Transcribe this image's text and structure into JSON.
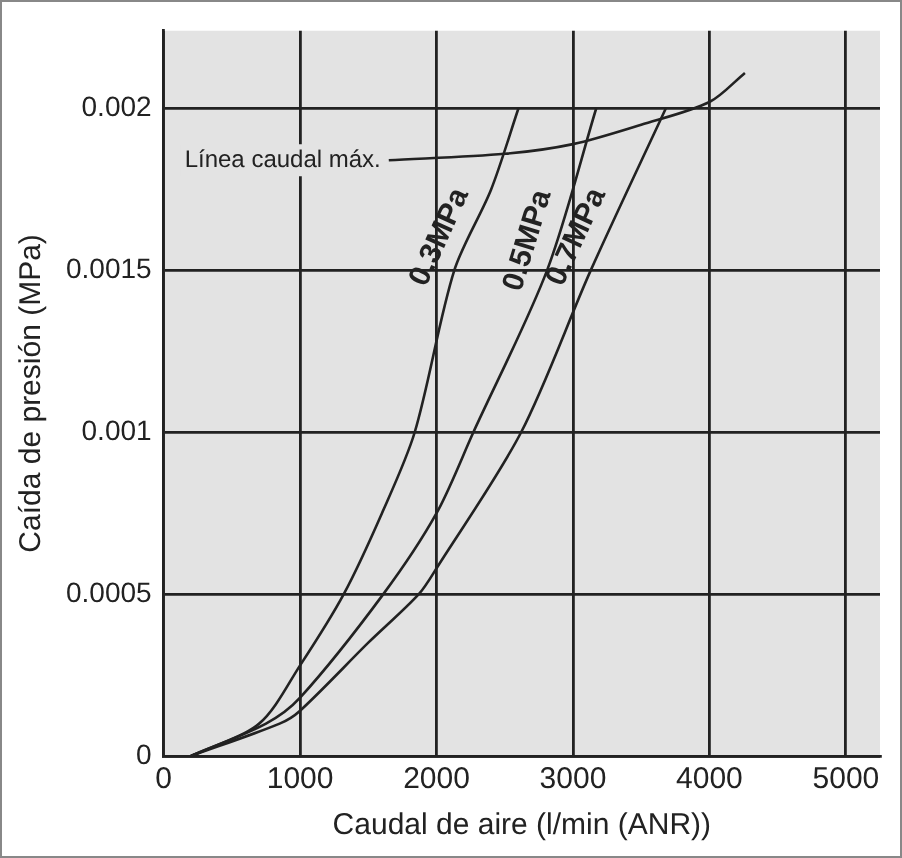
{
  "chart_data": {
    "type": "line",
    "xlabel": "Caudal de aire (l/min (ANR))",
    "ylabel": "Caída de presión (MPa)",
    "xlim": [
      0,
      5250
    ],
    "xticks": [
      0,
      1000,
      2000,
      3000,
      4000,
      5000
    ],
    "ylim": [
      0,
      0.00224
    ],
    "yticks": [
      0,
      0.0005,
      0.001,
      0.0015,
      0.002
    ],
    "grid": true,
    "legend": false,
    "marker": "none",
    "line_style": "solid",
    "series": [
      {
        "name": "0.3MPa",
        "color": "#222222",
        "x": [
          200,
          700,
          1000,
          1320,
          1600,
          1840,
          2130,
          2400,
          2600
        ],
        "values": [
          0,
          0.0001,
          0.00028,
          0.0005,
          0.00075,
          0.001,
          0.0015,
          0.00175,
          0.002
        ]
      },
      {
        "name": "0.5MPa",
        "color": "#222222",
        "x": [
          200,
          750,
          1000,
          1610,
          2000,
          2270,
          2810,
          3170
        ],
        "values": [
          0,
          0.0001,
          0.00018,
          0.0005,
          0.00075,
          0.001,
          0.0015,
          0.002
        ]
      },
      {
        "name": "0.7MPa",
        "color": "#222222",
        "x": [
          200,
          850,
          1000,
          1500,
          1870,
          2000,
          2620,
          3130,
          3680
        ],
        "values": [
          0,
          0.0001,
          0.00014,
          0.00035,
          0.0005,
          0.00058,
          0.001,
          0.0015,
          0.002
        ]
      },
      {
        "name": "Línea caudal máx.",
        "color": "#222222",
        "x": [
          1650,
          2500,
          3000,
          3500,
          4000,
          4260
        ],
        "values": [
          0.00184,
          0.00186,
          0.00189,
          0.00195,
          0.00202,
          0.00211
        ]
      }
    ]
  }
}
